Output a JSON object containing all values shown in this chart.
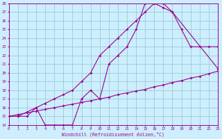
{
  "xlabel": "Windchill (Refroidissement éolien,°C)",
  "bg_color": "#cceeff",
  "line_color": "#990099",
  "grid_color": "#99cccc",
  "xmin": 0,
  "xmax": 23,
  "ymin": 14,
  "ymax": 28,
  "curve1_x": [
    0,
    1,
    2,
    3,
    4,
    5,
    6,
    7,
    8,
    9,
    10,
    11,
    12,
    13,
    14,
    15,
    16,
    17,
    18,
    19,
    20,
    21,
    22,
    23
  ],
  "curve1_y": [
    15,
    15,
    15,
    16,
    14,
    14,
    14,
    14,
    17,
    18,
    17,
    21,
    22,
    23,
    25,
    28,
    28,
    28,
    27,
    25,
    23,
    23,
    23,
    23
  ],
  "curve2_x": [
    0,
    1,
    2,
    3,
    4,
    5,
    6,
    7,
    8,
    9,
    10,
    11,
    12,
    13,
    14,
    15,
    16,
    17,
    18,
    23
  ],
  "curve2_y": [
    15,
    15,
    15.5,
    16,
    16.5,
    17,
    17.5,
    18,
    19,
    20,
    22,
    23,
    24,
    25,
    26,
    27,
    28,
    27.5,
    27,
    20.5
  ],
  "curve3_x": [
    0,
    1,
    2,
    3,
    4,
    5,
    6,
    7,
    8,
    9,
    10,
    11,
    12,
    13,
    14,
    15,
    16,
    17,
    18,
    19,
    20,
    21,
    22,
    23
  ],
  "curve3_y": [
    15,
    15.2,
    15.4,
    15.6,
    15.8,
    16.0,
    16.2,
    16.4,
    16.6,
    16.8,
    17.0,
    17.2,
    17.5,
    17.7,
    17.9,
    18.1,
    18.4,
    18.6,
    18.9,
    19.1,
    19.4,
    19.6,
    19.9,
    20.2
  ]
}
